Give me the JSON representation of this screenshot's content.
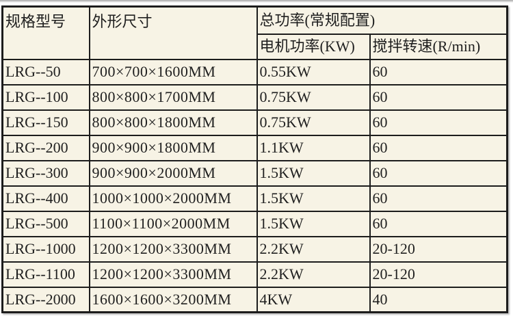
{
  "table": {
    "headers": {
      "model": "规格型号",
      "dimensions": "外形尺寸",
      "total_power": "总功率(常规配置)",
      "motor_power": "电机功率(KW)",
      "speed": "搅拌转速(R/min)"
    },
    "rows": [
      {
        "model": "LRG--50",
        "dimensions": "700×700×1600MM",
        "motor_power": "0.55KW",
        "speed": "60"
      },
      {
        "model": "LRG--100",
        "dimensions": "800×800×1700MM",
        "motor_power": "0.75KW",
        "speed": "60"
      },
      {
        "model": "LRG--150",
        "dimensions": "800×800×1800MM",
        "motor_power": "0.75KW",
        "speed": "60"
      },
      {
        "model": "LRG--200",
        "dimensions": "900×900×1800MM",
        "motor_power": "1.1KW",
        "speed": "60"
      },
      {
        "model": "LRG--300",
        "dimensions": "900×900×2000MM",
        "motor_power": "1.5KW",
        "speed": "60"
      },
      {
        "model": "LRG--400",
        "dimensions": "1000×1000×2000MM",
        "motor_power": "1.5KW",
        "speed": "60"
      },
      {
        "model": "LRG--500",
        "dimensions": "1100×1100×2000MM",
        "motor_power": "1.5KW",
        "speed": "60"
      },
      {
        "model": "LRG--1000",
        "dimensions": "1200×1200×3300MM",
        "motor_power": "2.2KW",
        "speed": "20-120"
      },
      {
        "model": "LRG--1100",
        "dimensions": "1200×1200×3300MM",
        "motor_power": "2.2KW",
        "speed": "20-120"
      },
      {
        "model": "LRG--2000",
        "dimensions": "1600×1600×3200MM",
        "motor_power": "4KW",
        "speed": "40"
      }
    ]
  },
  "colors": {
    "cell_background": "#f7f3e5",
    "border": "#1c1c1c",
    "text": "#1f1f1f"
  }
}
